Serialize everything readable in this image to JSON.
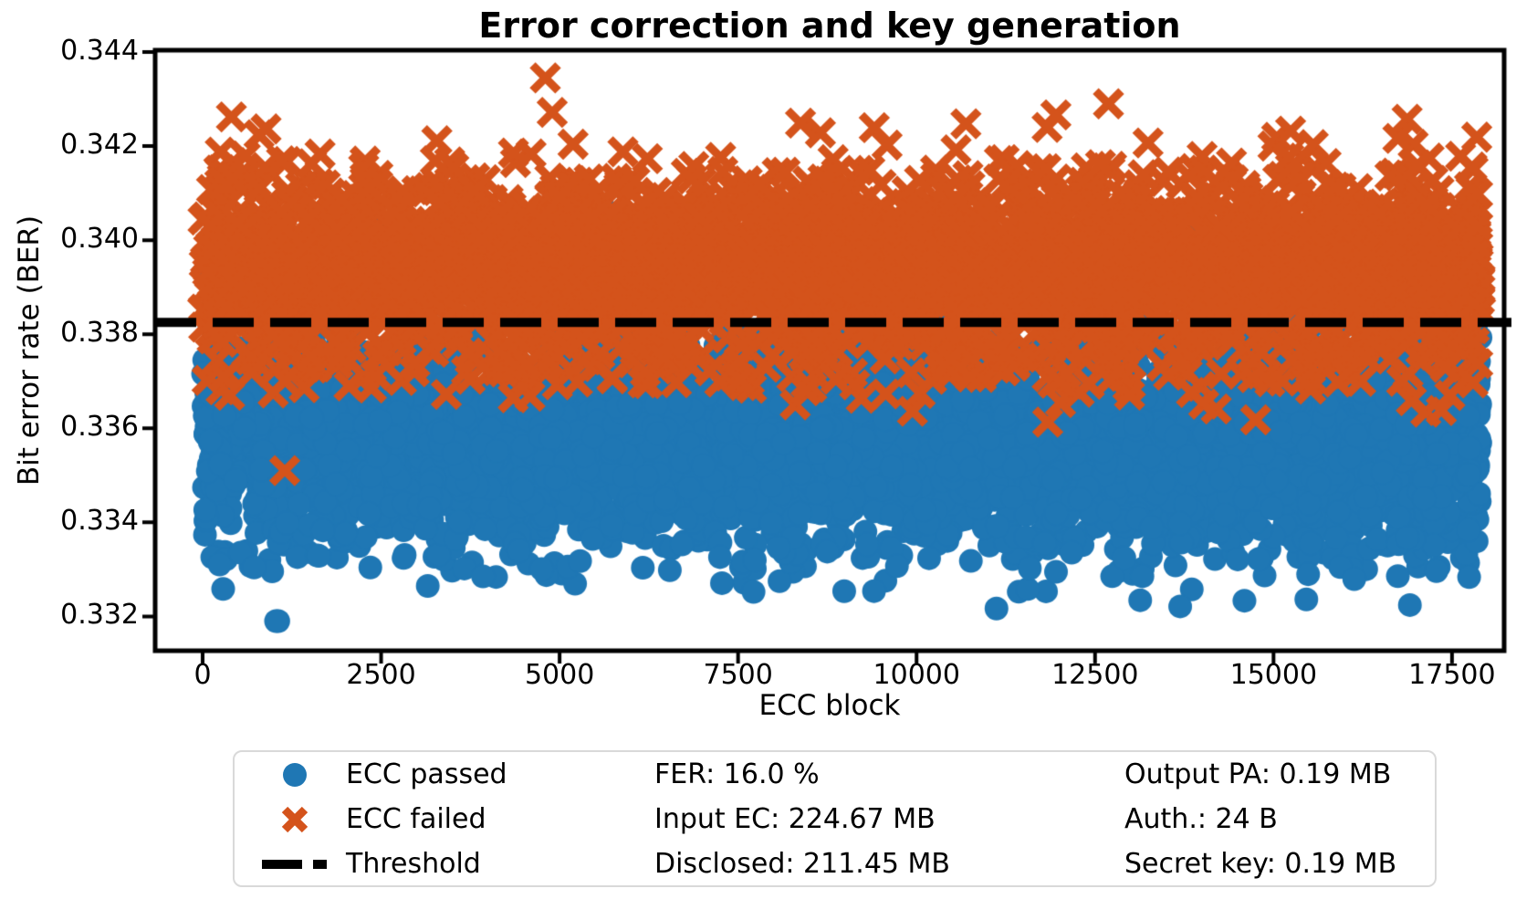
{
  "chart_data": {
    "type": "scatter",
    "title": "Error correction and key generation",
    "xlabel": "ECC block",
    "ylabel": "Bit error rate (BER)",
    "xlim": [
      -665,
      18230
    ],
    "ylim": [
      0.33127,
      0.34404
    ],
    "x_ticks": [
      0,
      2500,
      5000,
      7500,
      10000,
      12500,
      15000,
      17500
    ],
    "y_ticks": [
      0.332,
      0.334,
      0.336,
      0.338,
      0.34,
      0.342,
      0.344
    ],
    "grid": false,
    "n_blocks": 17900,
    "threshold": {
      "label": "Threshold",
      "value": 0.33825,
      "color": "#000000",
      "style": "dashed"
    },
    "series": [
      {
        "name": "ECC passed",
        "marker": "circle",
        "color": "#1f77b4",
        "components": [
          {
            "count": 4600,
            "mean": 0.3357,
            "std": 0.00115,
            "clip": [
              0.3319,
              0.3408
            ]
          },
          {
            "count": 70,
            "mean": 0.3395,
            "std": 0.0006,
            "clip": [
              0.338,
              0.34085
            ]
          }
        ],
        "outliers": []
      },
      {
        "name": "ECC failed",
        "marker": "x",
        "color": "#d4531b",
        "components": [
          {
            "count": 3100,
            "mean": 0.3395,
            "std": 0.00092,
            "clip": [
              0.3353,
              0.3429
            ]
          },
          {
            "count": 230,
            "mean": 0.33745,
            "std": 0.00042,
            "clip": [
              0.3363,
              0.3385
            ]
          },
          {
            "count": 25,
            "mean": 0.34215,
            "std": 0.00055,
            "clip": [
              0.3413,
              0.3429
            ]
          }
        ],
        "outliers": [
          [
            4800,
            0.34345
          ],
          [
            1150,
            0.3351
          ],
          [
            8300,
            0.3365
          ],
          [
            14750,
            0.33618
          ],
          [
            17350,
            0.33638
          ],
          [
            17470,
            0.3367
          ],
          [
            8450,
            0.3368
          ],
          [
            4350,
            0.33665
          ],
          [
            2050,
            0.3369
          ],
          [
            12000,
            0.337
          ]
        ]
      }
    ],
    "legend": {
      "entries": [
        {
          "label": "ECC passed",
          "marker": "circle"
        },
        {
          "label": "ECC failed",
          "marker": "x"
        },
        {
          "label": "Threshold",
          "marker": "dash"
        }
      ],
      "stats_col2": [
        "FER: 16.0 %",
        "Input EC: 224.67 MB",
        "Disclosed: 211.45 MB"
      ],
      "stats_col3": [
        "Output PA: 0.19 MB",
        "Auth.: 24 B",
        "Secret key: 0.19 MB"
      ]
    }
  }
}
